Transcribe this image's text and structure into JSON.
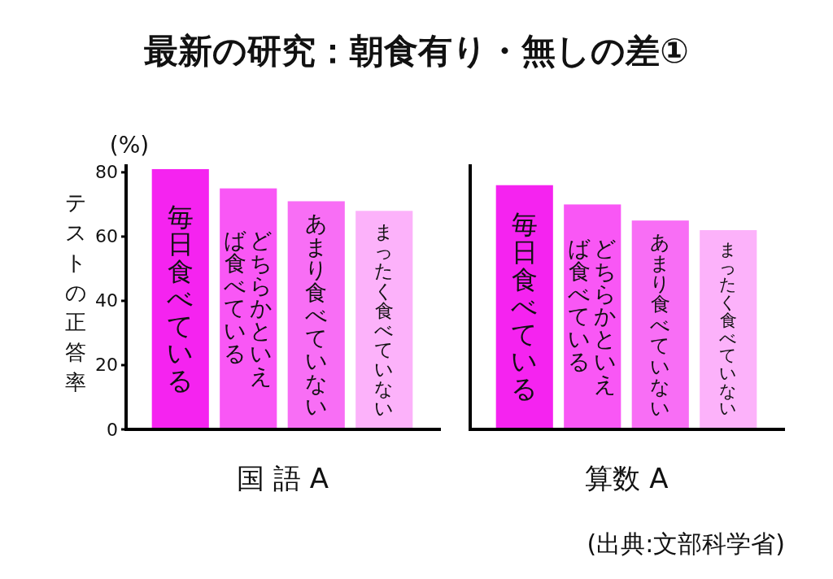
{
  "chart_data": [
    {
      "type": "bar",
      "title": "最新の研究：朝食有り・無しの差①",
      "xlabel": "国 語 A",
      "ylabel": "テストの正答率",
      "annotations": [
        "(%)"
      ],
      "categories": [
        "毎日食べている",
        "どちらかといえば食べている",
        "あまり食べていない",
        "まったく食べていない"
      ],
      "values": [
        81,
        75,
        71,
        68
      ],
      "colors": [
        "#f523f0",
        "#f957f5",
        "#f86ef5",
        "#fcb2fa"
      ],
      "ylim": [
        0,
        82
      ],
      "yticks": [
        0,
        20,
        40,
        60,
        80
      ]
    },
    {
      "type": "bar",
      "xlabel": "算数 A",
      "annotations": [
        "(出典:文部科学省)"
      ],
      "categories": [
        "毎日食べている",
        "どちらかといえば食べている",
        "あまり食べていない",
        "まったく食べていない"
      ],
      "values": [
        76,
        70,
        65,
        62
      ],
      "colors": [
        "#f523f0",
        "#f957f5",
        "#f86ef5",
        "#fcb2fa"
      ],
      "ylim": [
        0,
        82
      ],
      "tick_labels": "x"
    }
  ]
}
